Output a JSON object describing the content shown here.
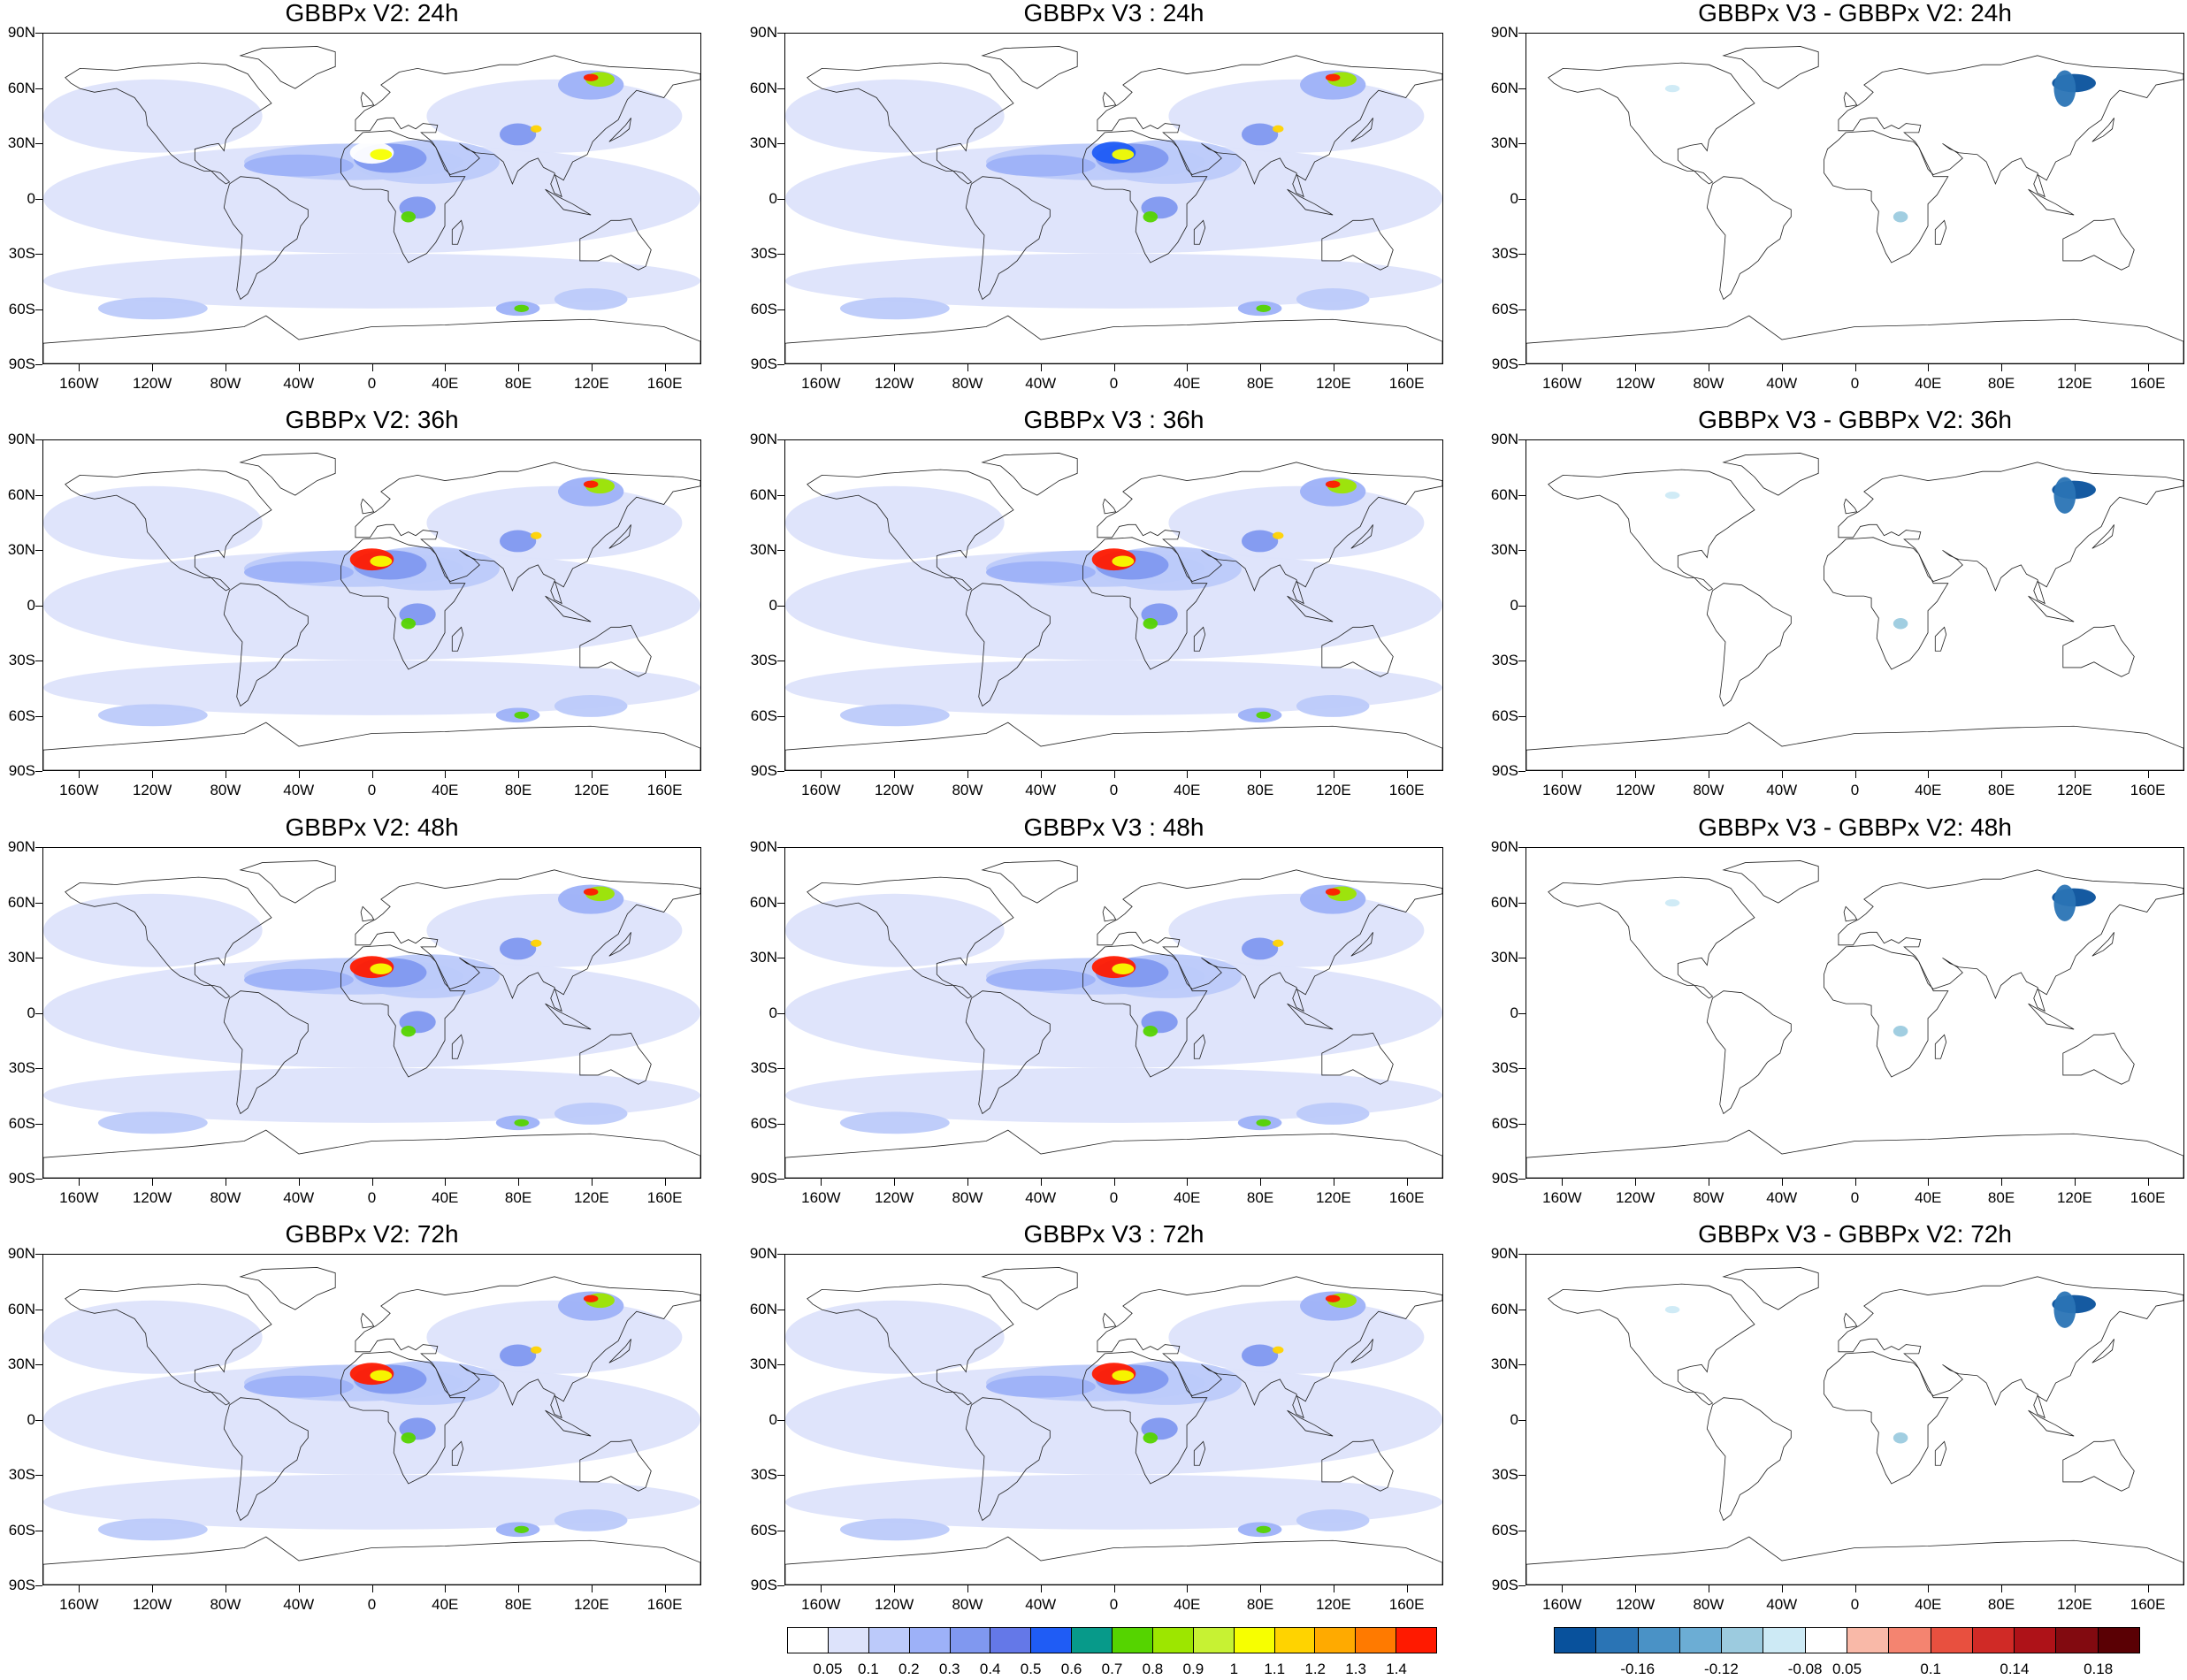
{
  "panels": [
    {
      "title": "GBBPx V2: 24h",
      "kind": "field"
    },
    {
      "title": "GBBPx V3 : 24h",
      "kind": "field"
    },
    {
      "title": "GBBPx V3 - GBBPx V2: 24h",
      "kind": "diff"
    },
    {
      "title": "GBBPx V2: 36h",
      "kind": "field"
    },
    {
      "title": "GBBPx V3 : 36h",
      "kind": "field"
    },
    {
      "title": "GBBPx V3 - GBBPx V2: 36h",
      "kind": "diff"
    },
    {
      "title": "GBBPx V2: 48h",
      "kind": "field"
    },
    {
      "title": "GBBPx V3 : 48h",
      "kind": "field"
    },
    {
      "title": "GBBPx V3 - GBBPx V2: 48h",
      "kind": "diff"
    },
    {
      "title": "GBBPx V2: 72h",
      "kind": "field"
    },
    {
      "title": "GBBPx V3 : 72h",
      "kind": "field"
    },
    {
      "title": "GBBPx V3 - GBBPx V2: 72h",
      "kind": "diff"
    }
  ],
  "axes": {
    "lat_labels": [
      "90N",
      "60N",
      "30N",
      "0",
      "30S",
      "60S",
      "90S"
    ],
    "lon_labels": [
      "160W",
      "120W",
      "80W",
      "40W",
      "0",
      "40E",
      "80E",
      "120E",
      "160E"
    ]
  },
  "colorbar_field": {
    "colors": [
      "#ffffff",
      "#dde3fb",
      "#bccafa",
      "#9db1f8",
      "#8098f0",
      "#6478e8",
      "#1f5cf5",
      "#079a8a",
      "#55d400",
      "#9de600",
      "#c7f233",
      "#f7ff00",
      "#ffd300",
      "#ffaa00",
      "#ff7a00",
      "#ff1a00"
    ],
    "labels": [
      "0.05",
      "0.1",
      "0.2",
      "0.3",
      "0.4",
      "0.5",
      "0.6",
      "0.7",
      "0.8",
      "0.9",
      "1",
      "1.1",
      "1.2",
      "1.3",
      "1.4"
    ]
  },
  "colorbar_diff": {
    "colors": [
      "#08519c",
      "#2a74b5",
      "#4a92c6",
      "#6cadd4",
      "#9ccbdf",
      "#cdeaf5",
      "#ffffff",
      "#f9b9a8",
      "#f48470",
      "#e8503f",
      "#d02a26",
      "#ae1218",
      "#820a10",
      "#5a0004"
    ],
    "labels": [
      "-0.16",
      "-0.12",
      "-0.08",
      "0.05",
      "0.1",
      "0.14",
      "0.18"
    ]
  },
  "chart_data": {
    "type": "heatmap",
    "description_units": "none printed",
    "x_axis": {
      "type": "longitude",
      "range": [
        -180,
        180
      ],
      "ticks": [
        -160,
        -120,
        -80,
        -40,
        0,
        40,
        80,
        120,
        160
      ]
    },
    "y_axis": {
      "type": "latitude",
      "range": [
        -90,
        90
      ],
      "ticks": [
        90,
        60,
        30,
        0,
        -30,
        -60,
        -90
      ]
    },
    "field_colorbar_levels": [
      0.05,
      0.1,
      0.2,
      0.3,
      0.4,
      0.5,
      0.6,
      0.7,
      0.8,
      0.9,
      1,
      1.1,
      1.2,
      1.3,
      1.4
    ],
    "diff_colorbar_levels": [
      -0.16,
      -0.12,
      -0.08,
      0.05,
      0.1,
      0.14,
      0.18
    ]
  }
}
